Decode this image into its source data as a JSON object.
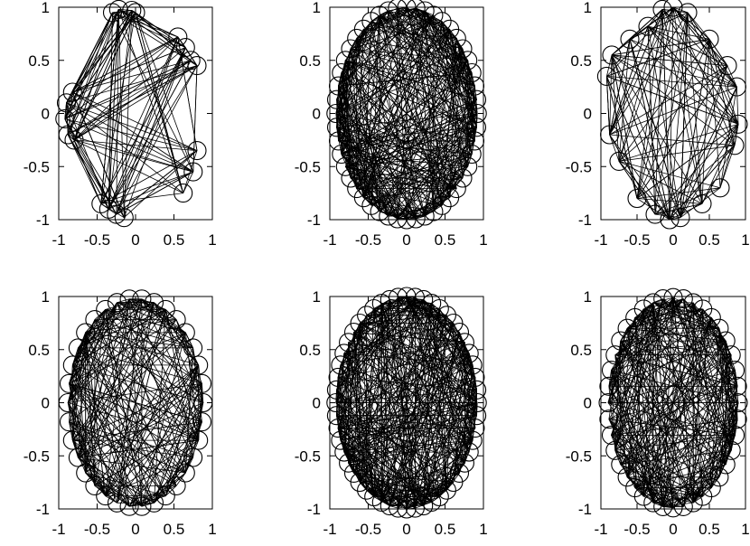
{
  "chart_data": [
    {
      "type": "scatter",
      "panel": "top-left",
      "xlim": [
        -1,
        1
      ],
      "ylim": [
        -1,
        1
      ],
      "xticks": [
        "-1",
        "-0.5",
        "0",
        "0.5",
        "1"
      ],
      "yticks": [
        "1",
        "0.5",
        "0",
        "-0.5",
        "-1"
      ],
      "marker": "open-circle",
      "edges": "dense random lines between nodes",
      "x": [
        -0.3,
        -0.22,
        -0.05,
        0.0,
        0.55,
        0.65,
        0.72,
        0.8,
        0.8,
        0.75,
        0.62,
        -0.15,
        -0.25,
        -0.35,
        -0.45,
        -0.82,
        -0.9,
        -0.92,
        -0.88,
        -0.8
      ],
      "y": [
        0.95,
        0.98,
        0.97,
        0.95,
        0.72,
        0.62,
        0.5,
        0.45,
        -0.35,
        -0.55,
        -0.75,
        -0.98,
        -0.95,
        -0.9,
        -0.85,
        0.2,
        0.1,
        -0.05,
        -0.2,
        -0.25
      ]
    },
    {
      "type": "scatter",
      "panel": "top-middle",
      "xlim": [
        -1,
        1
      ],
      "ylim": [
        -1,
        1
      ],
      "xticks": [
        "-1",
        "-0.5",
        "0",
        "0.5",
        "1"
      ],
      "yticks": [
        "1",
        "0.5",
        "0",
        "-0.5",
        "-1"
      ],
      "marker": "open-circle",
      "edges": "dense random lines between nodes",
      "nodes_on_ellipse": 48,
      "rx": 0.92,
      "ry": 1.0
    },
    {
      "type": "scatter",
      "panel": "top-right",
      "xlim": [
        -1,
        1
      ],
      "ylim": [
        -1,
        1
      ],
      "xticks": [
        "-1",
        "-0.5",
        "0",
        "0.5",
        "1"
      ],
      "yticks": [
        "1",
        "0.5",
        "0",
        "-0.5",
        "-1"
      ],
      "marker": "open-circle",
      "edges": "dense random lines between nodes",
      "x": [
        -0.35,
        -0.15,
        0.0,
        0.2,
        0.5,
        0.75,
        0.88,
        0.9,
        0.85,
        0.65,
        0.4,
        0.1,
        -0.05,
        -0.25,
        -0.5,
        -0.75,
        -0.88,
        -0.92,
        -0.85,
        -0.6
      ],
      "y": [
        0.82,
        0.98,
        1.0,
        0.95,
        0.7,
        0.45,
        0.25,
        -0.1,
        -0.3,
        -0.7,
        -0.85,
        -0.98,
        -1.0,
        -0.95,
        -0.8,
        -0.45,
        -0.2,
        0.35,
        0.55,
        0.7
      ]
    },
    {
      "type": "scatter",
      "panel": "bottom-left",
      "xlim": [
        -1,
        1
      ],
      "ylim": [
        -1,
        1
      ],
      "xticks": [
        "-1",
        "-0.5",
        "0",
        "0.5",
        "1"
      ],
      "yticks": [
        "1",
        "0.5",
        "0",
        "-0.5",
        "-1"
      ],
      "marker": "open-circle",
      "edges": "dense random lines between nodes",
      "nodes_on_ellipse": 34,
      "rx": 0.88,
      "ry": 0.98
    },
    {
      "type": "scatter",
      "panel": "bottom-middle",
      "xlim": [
        -1,
        1
      ],
      "ylim": [
        -1,
        1
      ],
      "xticks": [
        "-1",
        "-0.5",
        "0",
        "0.5",
        "1"
      ],
      "yticks": [
        "1",
        "0.5",
        "0",
        "-0.5",
        "-1"
      ],
      "marker": "open-circle",
      "edges": "dense random lines between nodes",
      "nodes_on_ellipse": 52,
      "rx": 0.92,
      "ry": 1.0
    },
    {
      "type": "scatter",
      "panel": "bottom-right",
      "xlim": [
        -1,
        1
      ],
      "ylim": [
        -1,
        1
      ],
      "xticks": [
        "-1",
        "-0.5",
        "0",
        "0.5",
        "1"
      ],
      "yticks": [
        "1",
        "0.5",
        "0",
        "-0.5",
        "-1"
      ],
      "marker": "open-circle",
      "edges": "dense random lines between nodes",
      "nodes_on_ellipse": 40,
      "rx": 0.9,
      "ry": 0.99
    }
  ]
}
